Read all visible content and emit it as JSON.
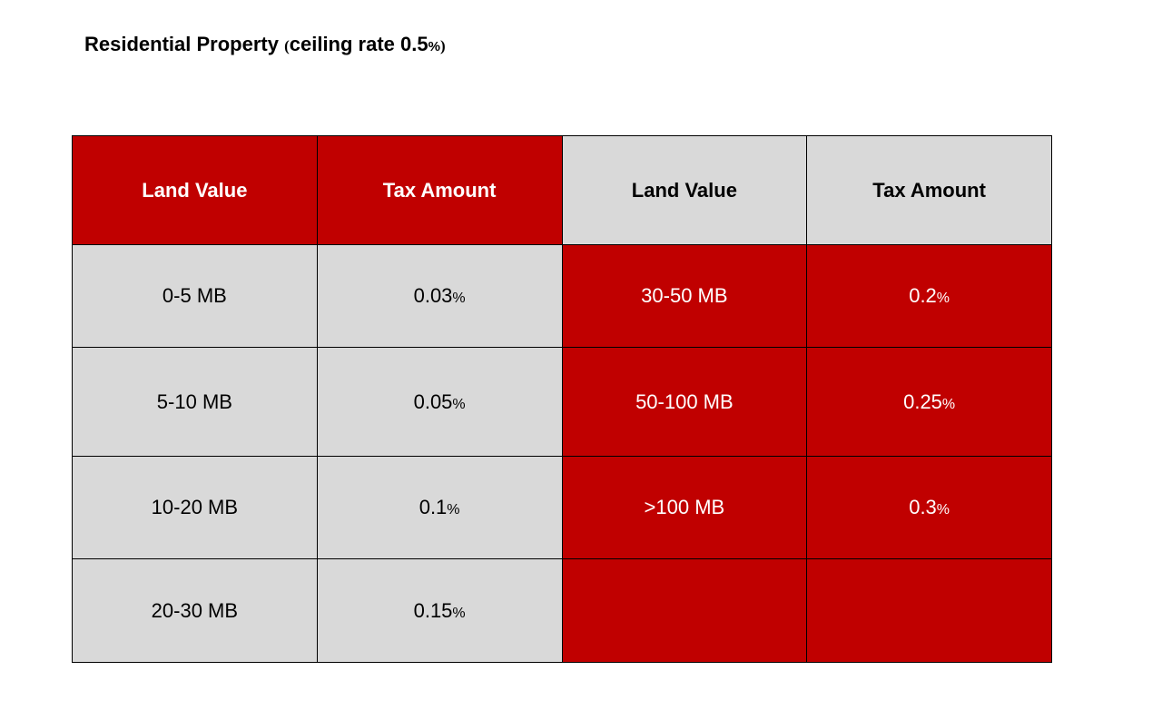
{
  "title": {
    "main": "Residential Property ",
    "paren_open": "(",
    "rest": "ceiling rate 0.5",
    "percent": "%",
    "paren_close": ")"
  },
  "colors": {
    "red": "#c00000",
    "grey": "#d9d9d9"
  },
  "table": {
    "headers": [
      "Land Value",
      "Tax Amount",
      "Land Value",
      "Tax Amount"
    ],
    "rows": [
      {
        "lv1": "0-5 MB",
        "tax1": "0.03",
        "lv2": "30-50 MB",
        "tax2": "0.2"
      },
      {
        "lv1": "5-10 MB",
        "tax1": "0.05",
        "lv2": "50-100 MB",
        "tax2": "0.25"
      },
      {
        "lv1": "10-20 MB",
        "tax1": "0.1",
        "lv2": ">100 MB",
        "tax2": "0.3"
      },
      {
        "lv1": "20-30 MB",
        "tax1": "0.15",
        "lv2": "",
        "tax2": ""
      }
    ],
    "percent": "%"
  }
}
